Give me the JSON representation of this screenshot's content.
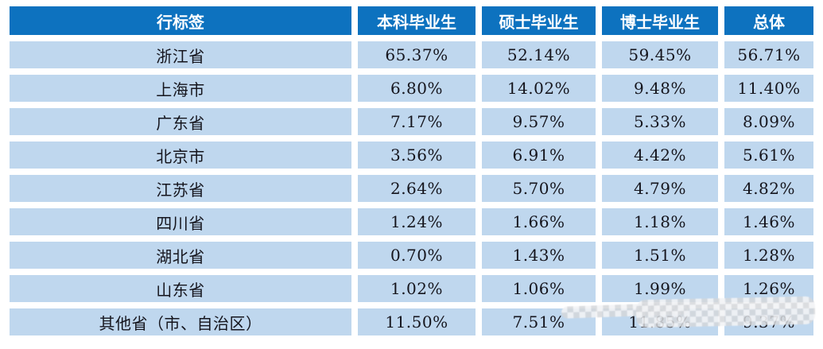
{
  "chart_data": {
    "type": "table",
    "title": "",
    "columns": [
      "行标签",
      "本科毕业生",
      "硕士毕业生",
      "博士毕业生",
      "总体"
    ],
    "rows": [
      [
        "浙江省",
        "65.37%",
        "52.14%",
        "59.45%",
        "56.71%"
      ],
      [
        "上海市",
        "6.80%",
        "14.02%",
        "9.48%",
        "11.40%"
      ],
      [
        "广东省",
        "7.17%",
        "9.57%",
        "5.33%",
        "8.09%"
      ],
      [
        "北京市",
        "3.56%",
        "6.91%",
        "4.42%",
        "5.61%"
      ],
      [
        "江苏省",
        "2.64%",
        "5.70%",
        "4.79%",
        "4.82%"
      ],
      [
        "四川省",
        "1.24%",
        "1.66%",
        "1.18%",
        "1.46%"
      ],
      [
        "湖北省",
        "0.70%",
        "1.43%",
        "1.51%",
        "1.28%"
      ],
      [
        "山东省",
        "1.02%",
        "1.06%",
        "1.99%",
        "1.26%"
      ],
      [
        "其他省（市、自治区）",
        "11.50%",
        "7.51%",
        "11.85%",
        "9.37%"
      ]
    ]
  },
  "colors": {
    "header_bg": "#0d72bf",
    "header_text": "#ffffff",
    "row_bg": "#bfd7ee",
    "cell_text": "#15151d",
    "page_bg": "#ffffff"
  }
}
